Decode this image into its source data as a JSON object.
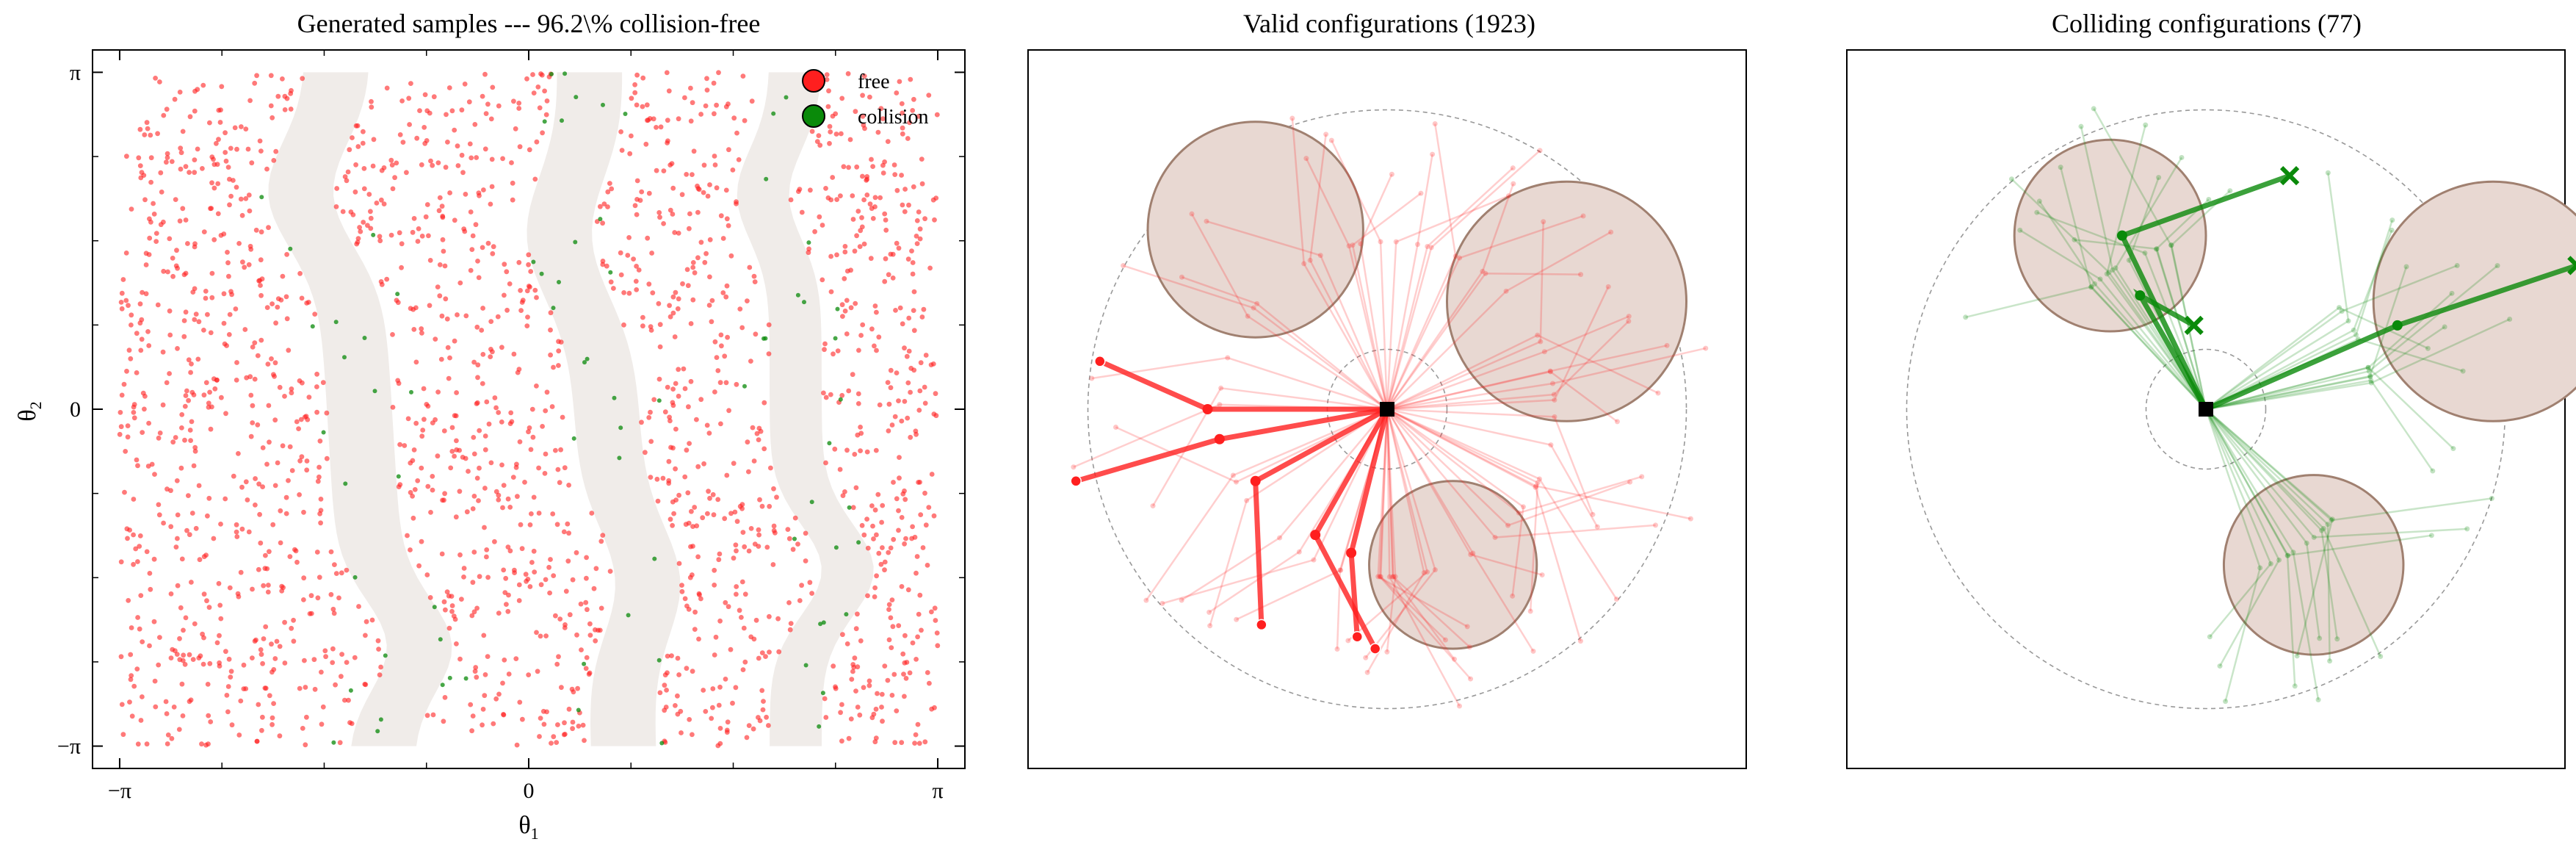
{
  "figure": {
    "colors": {
      "free": "#ff1f1f",
      "collision": "#0a8a0a",
      "obstacle_fill": "#e8d8d2",
      "obstacle_edge": "#a08070",
      "cspace_obstacle": "#f0ece9"
    }
  },
  "chart_data": [
    {
      "type": "scatter",
      "title": "Generated samples --- 96.2\\% collision-free",
      "xlabel": "θ",
      "xlabel_sub": "1",
      "ylabel": "θ",
      "ylabel_sub": "2",
      "xlim": [
        -3.35,
        3.35
      ],
      "ylim": [
        -3.35,
        3.35
      ],
      "xticks": [
        {
          "value": -3.14159,
          "label": "−π"
        },
        {
          "value": 0,
          "label": "0"
        },
        {
          "value": 3.14159,
          "label": "π"
        }
      ],
      "yticks": [
        {
          "value": 3.14159,
          "label": "π"
        },
        {
          "value": 0,
          "label": "0"
        },
        {
          "value": -3.14159,
          "label": "−π"
        }
      ],
      "legend_position": "top-right",
      "legend": [
        {
          "label": "free",
          "color_key": "free"
        },
        {
          "label": "collision",
          "color_key": "collision"
        }
      ],
      "series": [
        {
          "name": "free",
          "count_approx": 1850
        },
        {
          "name": "collision",
          "count_approx": 75
        }
      ],
      "cspace_obstacle_bands_theta1": [
        [
          -1.55,
          -1.05
        ],
        [
          0.35,
          0.85
        ],
        [
          1.85,
          2.25
        ]
      ]
    },
    {
      "type": "workspace",
      "title": "Valid configurations (1923)",
      "count": 1923,
      "obstacles": [
        {
          "cx": -1.1,
          "cy": 1.5,
          "r": 0.9
        },
        {
          "cx": 1.5,
          "cy": 0.9,
          "r": 1.0
        },
        {
          "cx": 0.55,
          "cy": -1.3,
          "r": 0.7
        }
      ],
      "highlighted_arms": [
        {
          "elbow": [
            -1.5,
            0.0
          ],
          "tip": [
            -2.4,
            0.4
          ]
        },
        {
          "elbow": [
            -1.4,
            -0.25
          ],
          "tip": [
            -2.6,
            -0.6
          ]
        },
        {
          "elbow": [
            -1.1,
            -0.6
          ],
          "tip": [
            -1.05,
            -1.8
          ]
        },
        {
          "elbow": [
            -0.6,
            -1.05
          ],
          "tip": [
            -0.1,
            -2.0
          ]
        },
        {
          "elbow": [
            -0.3,
            -1.2
          ],
          "tip": [
            -0.25,
            -1.9
          ]
        }
      ]
    },
    {
      "type": "workspace",
      "title": "Colliding configurations (77)",
      "count": 77,
      "obstacles": [
        {
          "cx": -0.8,
          "cy": 1.45,
          "r": 0.8
        },
        {
          "cx": 2.4,
          "cy": 0.9,
          "r": 1.0
        },
        {
          "cx": 0.9,
          "cy": -1.3,
          "r": 0.75
        }
      ],
      "highlighted_arms": [
        {
          "elbow": [
            -0.7,
            1.45
          ],
          "tip": [
            0.7,
            1.95
          ]
        },
        {
          "elbow": [
            1.6,
            0.7
          ],
          "tip": [
            3.1,
            1.2
          ]
        },
        {
          "elbow": [
            -0.55,
            0.95
          ],
          "tip": [
            -0.1,
            0.7
          ]
        }
      ]
    }
  ]
}
